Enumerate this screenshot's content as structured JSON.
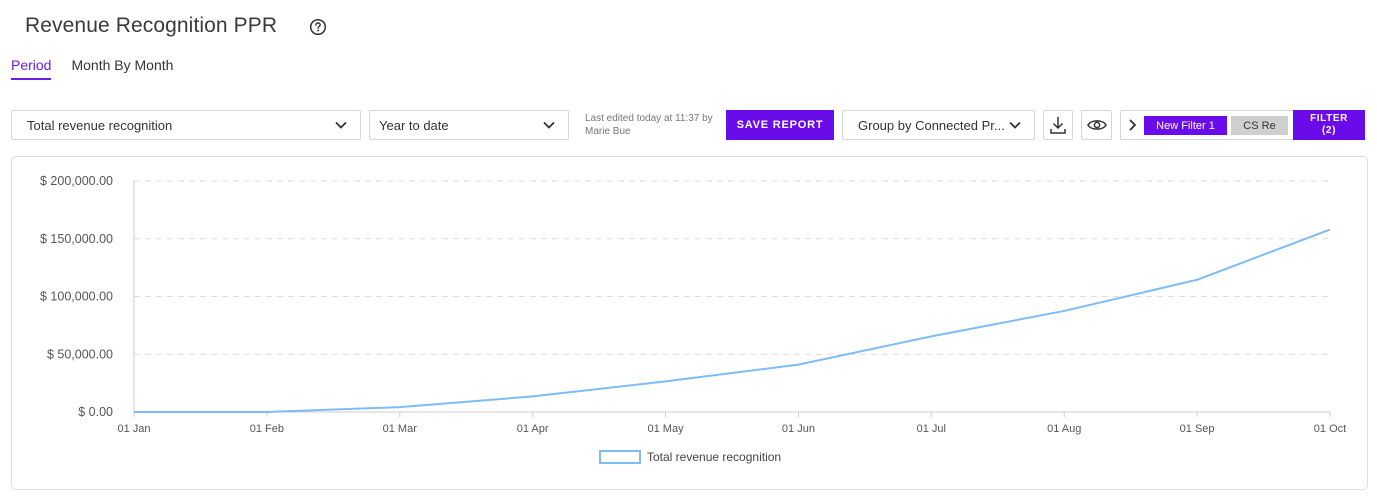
{
  "header": {
    "title": "Revenue Recognition PPR",
    "help_icon": "question-circle-icon"
  },
  "tabs": [
    {
      "label": "Period",
      "active": true
    },
    {
      "label": "Month By Month",
      "active": false
    }
  ],
  "toolbar": {
    "metric_select": {
      "value": "Total revenue recognition"
    },
    "period_select": {
      "value": "Year to date"
    },
    "last_edited": {
      "line1": "Last edited today at 11:37 by",
      "line2": "Marie Bue"
    },
    "save_label": "SAVE REPORT",
    "group_select": {
      "value": "Group by Connected Pr..."
    },
    "download_icon": "download-icon",
    "visibility_icon": "eye-icon",
    "filter_arrow_icon": "chevron-right-icon",
    "filter_chips": [
      {
        "label": "New Filter 1"
      },
      {
        "label": "CS Re"
      }
    ],
    "filter_button": {
      "line1": "FILTER",
      "line2": "(2)"
    }
  },
  "colors": {
    "accent": "#6a0bea",
    "series": "#7ebcf7",
    "grid": "#dddddd"
  },
  "chart_data": {
    "type": "line",
    "x": [
      "01 Jan",
      "01 Feb",
      "01 Mar",
      "01 Apr",
      "01 May",
      "01 Jun",
      "01 Jul",
      "01 Aug",
      "01 Sep",
      "01 Oct"
    ],
    "series": [
      {
        "name": "Total revenue recognition",
        "values": [
          0,
          0,
          4200,
          13500,
          26500,
          41000,
          65500,
          87500,
          114500,
          158000
        ]
      }
    ],
    "y_ticks": [
      "$ 0.00",
      "$ 50,000.00",
      "$ 100,000.00",
      "$ 150,000.00",
      "$ 200,000.00"
    ],
    "ylim": [
      0,
      200000
    ],
    "grid": true,
    "legend_position": "bottom"
  }
}
